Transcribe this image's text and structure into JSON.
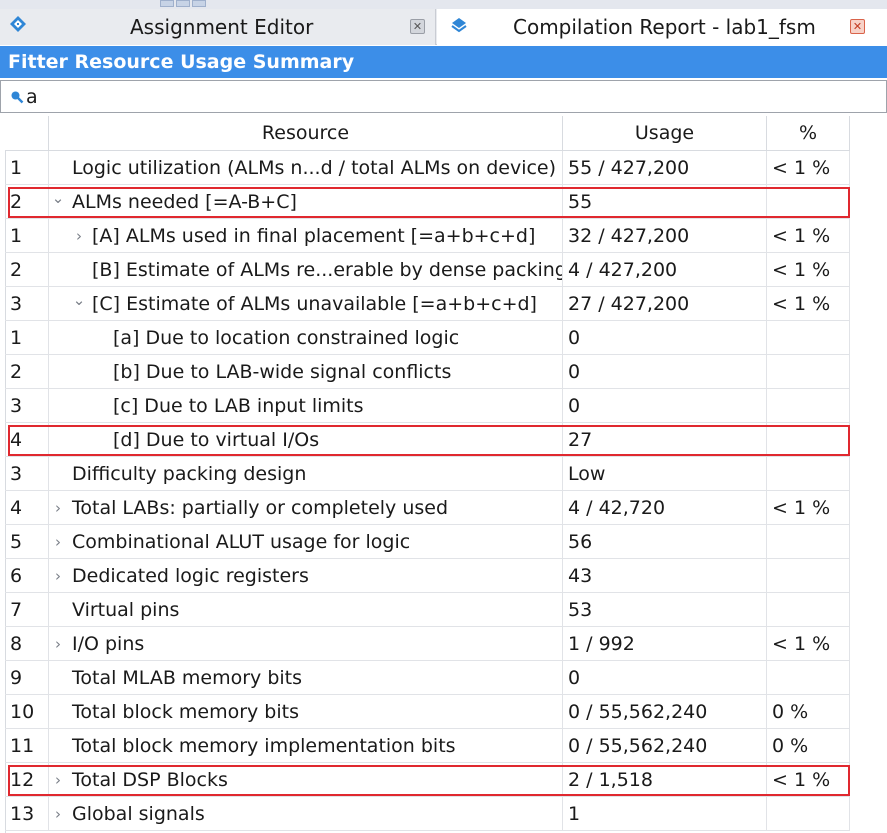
{
  "tabs": [
    {
      "label": "Assignment Editor",
      "active": false,
      "icon": "assignment-editor-icon"
    },
    {
      "label": "Compilation Report - lab1_fsm",
      "active": true,
      "icon": "compilation-report-icon"
    }
  ],
  "panel": {
    "title": "Fitter Resource Usage Summary"
  },
  "search": {
    "value": "a",
    "icon": "search-icon"
  },
  "table": {
    "headers": [
      "",
      "Resource",
      "Usage",
      "%"
    ],
    "rows": [
      {
        "num": "1",
        "indent": 0,
        "expander": "none",
        "resource": "Logic utilization (ALMs n...d / total ALMs on device)",
        "usage": "55 / 427,200",
        "pct": "< 1 %",
        "highlight": false
      },
      {
        "num": "2",
        "indent": 0,
        "expander": "expanded",
        "resource": "ALMs needed [=A-B+C]",
        "usage": "55",
        "pct": "",
        "highlight": true
      },
      {
        "num": "1",
        "indent": 1,
        "expander": "collapsed",
        "resource": "[A] ALMs used in final placement [=a+b+c+d]",
        "usage": "32 / 427,200",
        "pct": "< 1 %",
        "highlight": false
      },
      {
        "num": "2",
        "indent": 1,
        "expander": "none",
        "resource": "[B] Estimate of ALMs re...erable by dense packing",
        "usage": "4 / 427,200",
        "pct": "< 1 %",
        "highlight": false
      },
      {
        "num": "3",
        "indent": 1,
        "expander": "expanded",
        "resource": "[C] Estimate of ALMs unavailable [=a+b+c+d]",
        "usage": "27 / 427,200",
        "pct": "< 1 %",
        "highlight": false
      },
      {
        "num": "1",
        "indent": 2,
        "expander": "none",
        "resource": "[a] Due to location constrained logic",
        "usage": "0",
        "pct": "",
        "highlight": false
      },
      {
        "num": "2",
        "indent": 2,
        "expander": "none",
        "resource": "[b] Due to LAB-wide signal conflicts",
        "usage": "0",
        "pct": "",
        "highlight": false
      },
      {
        "num": "3",
        "indent": 2,
        "expander": "none",
        "resource": "[c] Due to LAB input limits",
        "usage": "0",
        "pct": "",
        "highlight": false
      },
      {
        "num": "4",
        "indent": 2,
        "expander": "none",
        "resource": "[d] Due to virtual I/Os",
        "usage": "27",
        "pct": "",
        "highlight": true
      },
      {
        "num": "3",
        "indent": 0,
        "expander": "none",
        "resource": "Difficulty packing design",
        "usage": "Low",
        "pct": "",
        "highlight": false
      },
      {
        "num": "4",
        "indent": 0,
        "expander": "collapsed",
        "resource": "Total LABs:  partially or completely used",
        "usage": "4 / 42,720",
        "pct": "< 1 %",
        "highlight": false
      },
      {
        "num": "5",
        "indent": 0,
        "expander": "collapsed",
        "resource": "Combinational ALUT usage for logic",
        "usage": "56",
        "pct": "",
        "highlight": false
      },
      {
        "num": "6",
        "indent": 0,
        "expander": "collapsed",
        "resource": "Dedicated logic registers",
        "usage": "43",
        "pct": "",
        "highlight": false
      },
      {
        "num": "7",
        "indent": 0,
        "expander": "none",
        "resource": "Virtual pins",
        "usage": "53",
        "pct": "",
        "highlight": false
      },
      {
        "num": "8",
        "indent": 0,
        "expander": "collapsed",
        "resource": "I/O pins",
        "usage": "1 / 992",
        "pct": "< 1 %",
        "highlight": false
      },
      {
        "num": "9",
        "indent": 0,
        "expander": "none",
        "resource": "Total MLAB memory bits",
        "usage": "0",
        "pct": "",
        "highlight": false
      },
      {
        "num": "10",
        "indent": 0,
        "expander": "none",
        "resource": "Total block memory bits",
        "usage": "0 / 55,562,240",
        "pct": "0 %",
        "highlight": false
      },
      {
        "num": "11",
        "indent": 0,
        "expander": "none",
        "resource": "Total block memory implementation bits",
        "usage": "0 / 55,562,240",
        "pct": "0 %",
        "highlight": false
      },
      {
        "num": "12",
        "indent": 0,
        "expander": "collapsed",
        "resource": "Total DSP Blocks",
        "usage": "2 / 1,518",
        "pct": "< 1 %",
        "highlight": true
      },
      {
        "num": "13",
        "indent": 0,
        "expander": "collapsed",
        "resource": "Global signals",
        "usage": "1",
        "pct": "",
        "highlight": false
      }
    ]
  },
  "colors": {
    "title_bar": "#3c8ee8",
    "highlight": "#e0282f",
    "close_active": "#d9634a"
  }
}
